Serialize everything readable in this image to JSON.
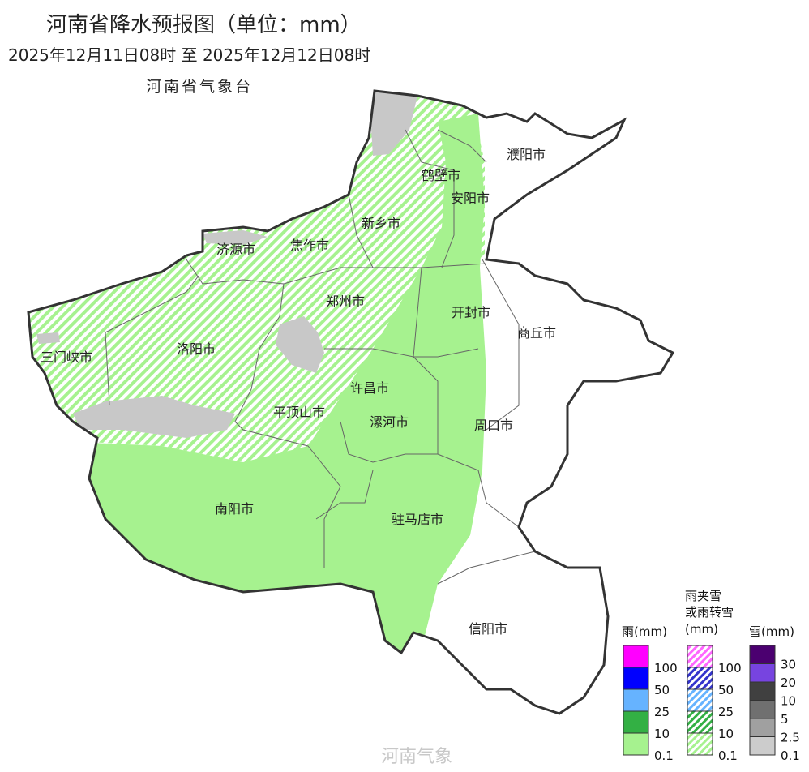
{
  "header": {
    "title": "河南省降水预报图（单位：mm）",
    "period": "2025年12月11日08时  至  2025年12月12日08时",
    "agency": "河南省气象台"
  },
  "cities": [
    {
      "name": "濮阳市"
    },
    {
      "name": "鹤壁市"
    },
    {
      "name": "安阳市"
    },
    {
      "name": "新乡市"
    },
    {
      "name": "济源市"
    },
    {
      "name": "焦作市"
    },
    {
      "name": "郑州市"
    },
    {
      "name": "开封市"
    },
    {
      "name": "商丘市"
    },
    {
      "name": "三门峡市"
    },
    {
      "name": "洛阳市"
    },
    {
      "name": "许昌市"
    },
    {
      "name": "平顶山市"
    },
    {
      "name": "漯河市"
    },
    {
      "name": "周口市"
    },
    {
      "name": "南阳市"
    },
    {
      "name": "驻马店市"
    },
    {
      "name": "信阳市"
    }
  ],
  "legend": {
    "rain": {
      "title": "雨(mm)",
      "levels": [
        "100",
        "50",
        "25",
        "10",
        "0.1"
      ],
      "colors": [
        "#ff00ff",
        "#0000ff",
        "#66b3ff",
        "#33b044",
        "#a6f28f"
      ]
    },
    "mixed": {
      "title1": "雨夹雪",
      "title2": "或雨转雪",
      "title3": "(mm)",
      "levels": [
        "100",
        "50",
        "25",
        "10",
        "0.1"
      ],
      "colors": [
        "#ff66ff",
        "#3333cc",
        "#66b3ff",
        "#33b044",
        "#a6f28f"
      ]
    },
    "snow": {
      "title": "雪(mm)",
      "levels": [
        "30",
        "20",
        "10",
        "5",
        "2.5",
        "0.1"
      ],
      "colors": [
        "#4b0070",
        "#7744e0",
        "#404040",
        "#707070",
        "#a0a0a0",
        "#cccccc"
      ]
    }
  },
  "watermark": "河南气象"
}
